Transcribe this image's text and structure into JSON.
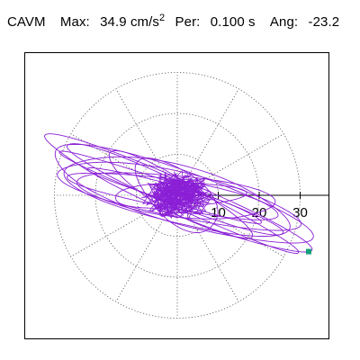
{
  "header": {
    "component": "CAVM",
    "max_label": "Max:",
    "max_value": "34.9 cm/s",
    "max_exponent": "2",
    "period_label": "Per:",
    "period_value": "0.100 s",
    "angle_label": "Ang:",
    "angle_value": "-23.2"
  },
  "chart_data": {
    "type": "line",
    "plot_kind": "polar-orbit",
    "title": "CAVM  Max: 34.9 cm/s2  Per: 0.100 s  Ang: -23.2",
    "xlabel": "",
    "ylabel": "",
    "radial_ticks": [
      "10",
      "20",
      "30"
    ],
    "radial_range": [
      0,
      35
    ],
    "rings": [
      10,
      20,
      30
    ],
    "spokes_deg": [
      0,
      30,
      60,
      90,
      120,
      150,
      180,
      210,
      240,
      270,
      300,
      330
    ],
    "grid": true,
    "orbit": {
      "start_angle_deg": -23.2,
      "end_radius": 34.9,
      "color": "#8a1fd6",
      "end_marker_color": "#14a07a",
      "ellipses": [
        {
          "a": 35.0,
          "b": 4.2,
          "rot": -23.2
        },
        {
          "a": 33.0,
          "b": 6.5,
          "rot": -18.0
        },
        {
          "a": 31.0,
          "b": 3.0,
          "rot": -25.0
        },
        {
          "a": 28.0,
          "b": 7.0,
          "rot": -14.0
        },
        {
          "a": 26.0,
          "b": 3.5,
          "rot": -10.0
        },
        {
          "a": 29.0,
          "b": 2.5,
          "rot": -20.0
        },
        {
          "a": 24.0,
          "b": 5.0,
          "rot": -6.0
        },
        {
          "a": 20.0,
          "b": 4.0,
          "rot": -30.0
        },
        {
          "a": 16.0,
          "b": 3.0,
          "rot": 2.0
        },
        {
          "a": 30.0,
          "b": 5.5,
          "rot": -12.0
        },
        {
          "a": 22.0,
          "b": 2.0,
          "rot": -17.0
        },
        {
          "a": 12.0,
          "b": 6.0,
          "rot": -40.0
        }
      ]
    }
  }
}
